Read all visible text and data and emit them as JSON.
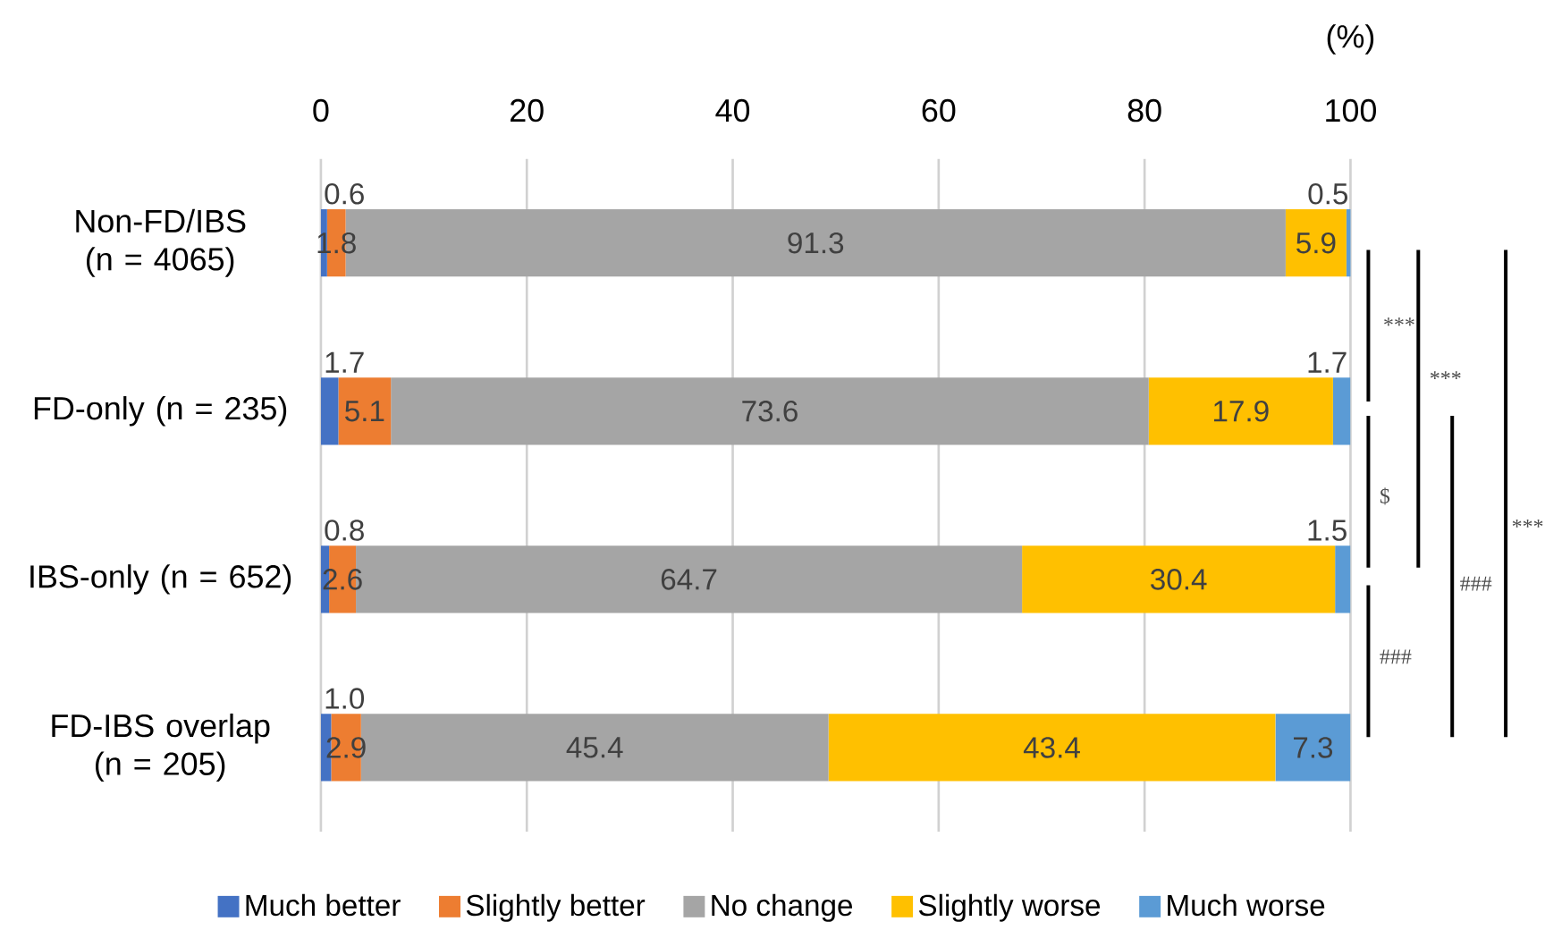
{
  "chart_data": {
    "type": "bar",
    "orientation": "horizontal",
    "stacked": true,
    "xlabel": "(%)",
    "categories": [
      "Non-FD/IBS (n = 4065)",
      "FD-only (n = 235)",
      "IBS-only (n = 652)",
      "FD-IBS overlap (n = 205)"
    ],
    "series": [
      {
        "name": "Much better",
        "color": "#4472c4",
        "values": [
          0.6,
          1.7,
          0.8,
          1.0
        ],
        "value_labels": [
          "0.6",
          "1.7",
          "0.8",
          "1.0"
        ]
      },
      {
        "name": "Slightly better",
        "color": "#ed7d31",
        "values": [
          1.8,
          5.1,
          2.6,
          2.9
        ],
        "value_labels": [
          "1.8",
          "5.1",
          "2.6",
          "2.9"
        ]
      },
      {
        "name": "No change",
        "color": "#a5a5a5",
        "values": [
          91.3,
          73.6,
          64.7,
          45.4
        ],
        "value_labels": [
          "91.3",
          "73.6",
          "64.7",
          "45.4"
        ]
      },
      {
        "name": "Slightly worse",
        "color": "#ffc000",
        "values": [
          5.9,
          17.9,
          30.4,
          43.4
        ],
        "value_labels": [
          "5.9",
          "17.9",
          "30.4",
          "43.4"
        ]
      },
      {
        "name": "Much worse",
        "color": "#5b9bd5",
        "values": [
          0.5,
          1.7,
          1.5,
          7.3
        ],
        "value_labels": [
          "0.5",
          "1.7",
          "1.5",
          "7.3"
        ]
      }
    ],
    "xlim": [
      0,
      100
    ],
    "xticks": [
      0,
      20,
      40,
      60,
      80,
      100
    ],
    "grid": "x",
    "legend": "bottom",
    "tick_labels": "x",
    "annotations": [
      "***",
      "***",
      "$",
      "###",
      "###",
      "***"
    ]
  }
}
